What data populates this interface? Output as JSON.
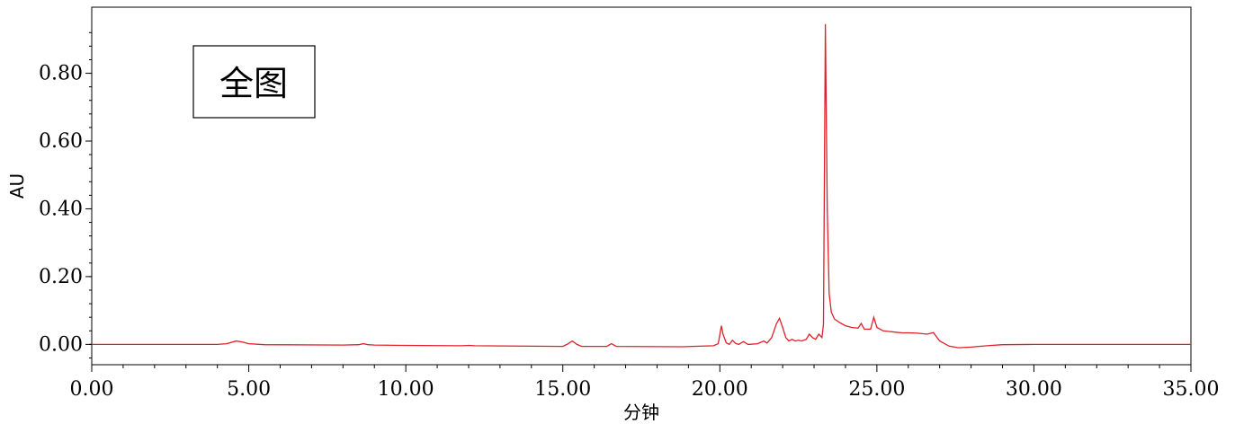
{
  "chart_data": {
    "type": "line",
    "title": "",
    "xlabel": "分钟",
    "ylabel": "AU",
    "xlim": [
      0,
      35
    ],
    "ylim": [
      -0.06,
      0.995
    ],
    "grid": false,
    "x_ticks": [
      0,
      5,
      10,
      15,
      20,
      25,
      30,
      35
    ],
    "x_tick_labels": [
      "0.00",
      "5.00",
      "10.00",
      "15.00",
      "20.00",
      "25.00",
      "30.00",
      "35.00"
    ],
    "y_ticks": [
      0,
      0.2,
      0.4,
      0.6,
      0.8
    ],
    "y_tick_labels": [
      "0.00",
      "0.20",
      "0.40",
      "0.60",
      "0.80"
    ],
    "annotation": "全图",
    "series_color": "#e0202a",
    "series": [
      {
        "x": [
          0,
          4.0,
          4.3,
          4.6,
          4.8,
          5.0,
          5.5,
          8.0,
          8.5,
          8.65,
          8.8,
          9.0,
          10.0,
          11.8,
          12.0,
          12.2,
          15.0,
          15.15,
          15.3,
          15.45,
          15.6,
          16.4,
          16.55,
          16.7,
          18.8,
          19.8,
          19.95,
          20.05,
          20.1,
          20.2,
          20.3,
          20.4,
          20.5,
          20.6,
          20.75,
          20.9,
          21.2,
          21.4,
          21.5,
          21.65,
          21.8,
          21.9,
          22.0,
          22.1,
          22.2,
          22.3,
          22.4,
          22.5,
          22.6,
          22.75,
          22.85,
          22.95,
          23.05,
          23.15,
          23.25,
          23.3,
          23.36,
          23.42,
          23.48,
          23.55,
          23.65,
          23.8,
          24.0,
          24.2,
          24.4,
          24.5,
          24.6,
          24.8,
          24.9,
          25.0,
          25.2,
          25.4,
          25.6,
          25.8,
          26.0,
          26.3,
          26.6,
          26.8,
          27.0,
          27.3,
          27.6,
          28.0,
          28.5,
          29.0,
          30.0,
          35.0
        ],
        "y": [
          0,
          0,
          0.002,
          0.01,
          0.007,
          0.002,
          -0.001,
          -0.002,
          -0.001,
          0.002,
          -0.001,
          -0.002,
          -0.003,
          -0.004,
          -0.003,
          -0.004,
          -0.006,
          0.001,
          0.01,
          0.0,
          -0.006,
          -0.006,
          0.002,
          -0.006,
          -0.007,
          -0.004,
          0.002,
          0.055,
          0.03,
          0.005,
          0.0,
          0.012,
          0.003,
          0.0,
          0.008,
          0.0,
          0.002,
          0.01,
          0.004,
          0.02,
          0.06,
          0.077,
          0.05,
          0.02,
          0.01,
          0.015,
          0.01,
          0.012,
          0.01,
          0.015,
          0.03,
          0.02,
          0.015,
          0.03,
          0.02,
          0.06,
          0.945,
          0.4,
          0.15,
          0.095,
          0.075,
          0.065,
          0.055,
          0.05,
          0.048,
          0.062,
          0.045,
          0.045,
          0.08,
          0.05,
          0.04,
          0.038,
          0.036,
          0.034,
          0.034,
          0.033,
          0.03,
          0.035,
          0.01,
          -0.005,
          -0.01,
          -0.008,
          -0.004,
          -0.001,
          0,
          0
        ]
      }
    ]
  }
}
